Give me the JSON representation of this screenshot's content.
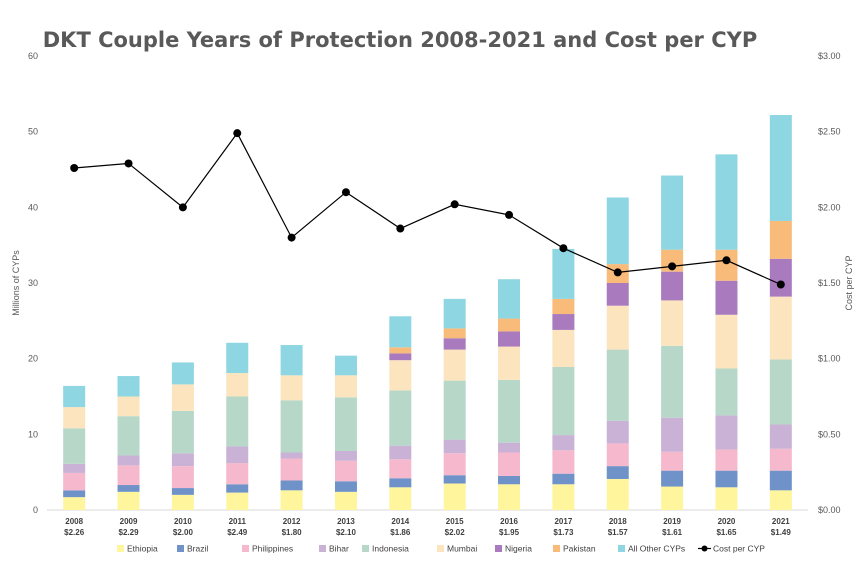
{
  "chart_data": {
    "type": "bar",
    "stacked": true,
    "title": "DKT Couple Years of Protection 2008-2021 and Cost per CYP",
    "ylabel": "Millions of CYPs",
    "y2label": "Cost per CYP",
    "ylim": [
      0,
      60
    ],
    "y2lim": [
      0,
      3.0
    ],
    "yticks": [
      "0",
      "10",
      "20",
      "30",
      "40",
      "50",
      "60"
    ],
    "y2ticks": [
      "$0.00",
      "$0.50",
      "$1.00",
      "$1.50",
      "$2.00",
      "$2.50",
      "$3.00"
    ],
    "grid": false,
    "legend_position": "bottom",
    "categories": [
      "2008",
      "2009",
      "2010",
      "2011",
      "2012",
      "2013",
      "2014",
      "2015",
      "2016",
      "2017",
      "2018",
      "2019",
      "2020",
      "2021"
    ],
    "cost_labels": [
      "$2.26",
      "$2.29",
      "$2.00",
      "$2.49",
      "$1.80",
      "$2.10",
      "$1.86",
      "$2.02",
      "$1.95",
      "$1.73",
      "$1.57",
      "$1.61",
      "$1.65",
      "$1.49"
    ],
    "series": [
      {
        "name": "Ethiopia",
        "color": "#FFF59D",
        "values": [
          1.7,
          2.4,
          2.0,
          2.3,
          2.6,
          2.4,
          3.0,
          3.5,
          3.4,
          3.4,
          4.1,
          3.1,
          3.0,
          2.6
        ]
      },
      {
        "name": "Brazil",
        "color": "#6F93C9",
        "values": [
          0.9,
          0.9,
          0.9,
          1.1,
          1.3,
          1.4,
          1.2,
          1.1,
          1.1,
          1.4,
          1.7,
          2.1,
          2.2,
          2.6
        ]
      },
      {
        "name": "Philippines",
        "color": "#F6B8CC",
        "values": [
          2.3,
          2.6,
          2.9,
          2.8,
          2.9,
          2.7,
          2.5,
          2.9,
          3.1,
          3.1,
          3.0,
          2.5,
          2.8,
          2.9
        ]
      },
      {
        "name": "Bihar",
        "color": "#C9B2D6",
        "values": [
          1.2,
          1.3,
          1.7,
          2.2,
          0.8,
          1.3,
          1.8,
          1.8,
          1.3,
          2.0,
          3.0,
          4.5,
          4.5,
          3.2
        ]
      },
      {
        "name": "Indonesia",
        "color": "#B7D8C8",
        "values": [
          4.7,
          5.2,
          5.6,
          6.6,
          6.9,
          7.1,
          7.3,
          7.8,
          8.3,
          9.0,
          9.4,
          9.5,
          6.2,
          8.6
        ]
      },
      {
        "name": "Mumbai",
        "color": "#FCE5BE",
        "values": [
          2.8,
          2.6,
          3.5,
          3.1,
          3.3,
          2.9,
          4.0,
          4.1,
          4.4,
          4.9,
          5.8,
          6.0,
          7.1,
          8.3
        ]
      },
      {
        "name": "Nigeria",
        "color": "#A97BBE",
        "values": [
          0,
          0,
          0,
          0,
          0,
          0,
          0.9,
          1.5,
          2.0,
          2.1,
          3.0,
          3.8,
          4.5,
          5.0
        ]
      },
      {
        "name": "Pakistan",
        "color": "#F9BB7A",
        "values": [
          0,
          0,
          0,
          0,
          0,
          0,
          0.8,
          1.3,
          1.7,
          2.0,
          2.5,
          2.9,
          4.1,
          5.0
        ]
      },
      {
        "name": "All Other CYPs",
        "color": "#8DD6E2",
        "values": [
          2.8,
          2.7,
          2.9,
          4.0,
          4.0,
          2.6,
          4.1,
          3.9,
          5.2,
          6.6,
          8.8,
          9.8,
          12.6,
          14.0
        ]
      }
    ],
    "line": {
      "name": "Cost per CYP",
      "color": "#000000",
      "values": [
        2.26,
        2.29,
        2.0,
        2.49,
        1.8,
        2.1,
        1.86,
        2.02,
        1.95,
        1.73,
        1.57,
        1.61,
        1.65,
        1.49
      ]
    }
  }
}
